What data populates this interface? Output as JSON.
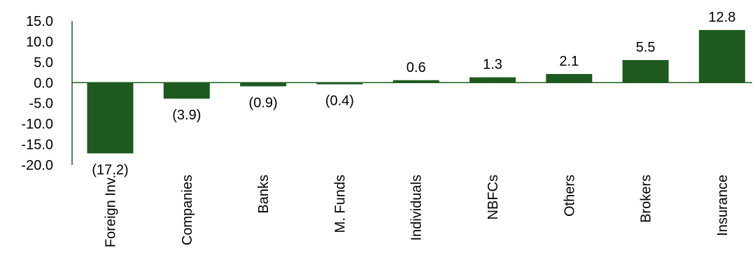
{
  "chart_data": {
    "type": "bar",
    "title": "",
    "xlabel": "",
    "ylabel": "",
    "categories": [
      "Foreign Inv.",
      "Companies",
      "Banks",
      "M. Funds",
      "Individuals",
      "NBFCs",
      "Others",
      "Brokers",
      "Insurance"
    ],
    "values": [
      -17.2,
      -3.9,
      -0.9,
      -0.4,
      0.6,
      1.3,
      2.1,
      5.5,
      12.8
    ],
    "value_labels": [
      "(17.2)",
      "(3.9)",
      "(0.9)",
      "(0.4)",
      "0.6",
      "1.3",
      "2.1",
      "5.5",
      "12.8"
    ],
    "ylim": [
      -20,
      15
    ],
    "yticks": [
      15,
      10,
      5,
      0,
      -5,
      -10,
      -15,
      -20
    ],
    "ytick_labels": [
      "15.0",
      "10.0",
      "5.0",
      "0.0",
      "-5.0",
      "-10.0",
      "-15.0",
      "-20.0"
    ],
    "grid": false,
    "legend": "none",
    "bar_color": "#1e5a1e",
    "axis_color": "#1e5a1e"
  }
}
